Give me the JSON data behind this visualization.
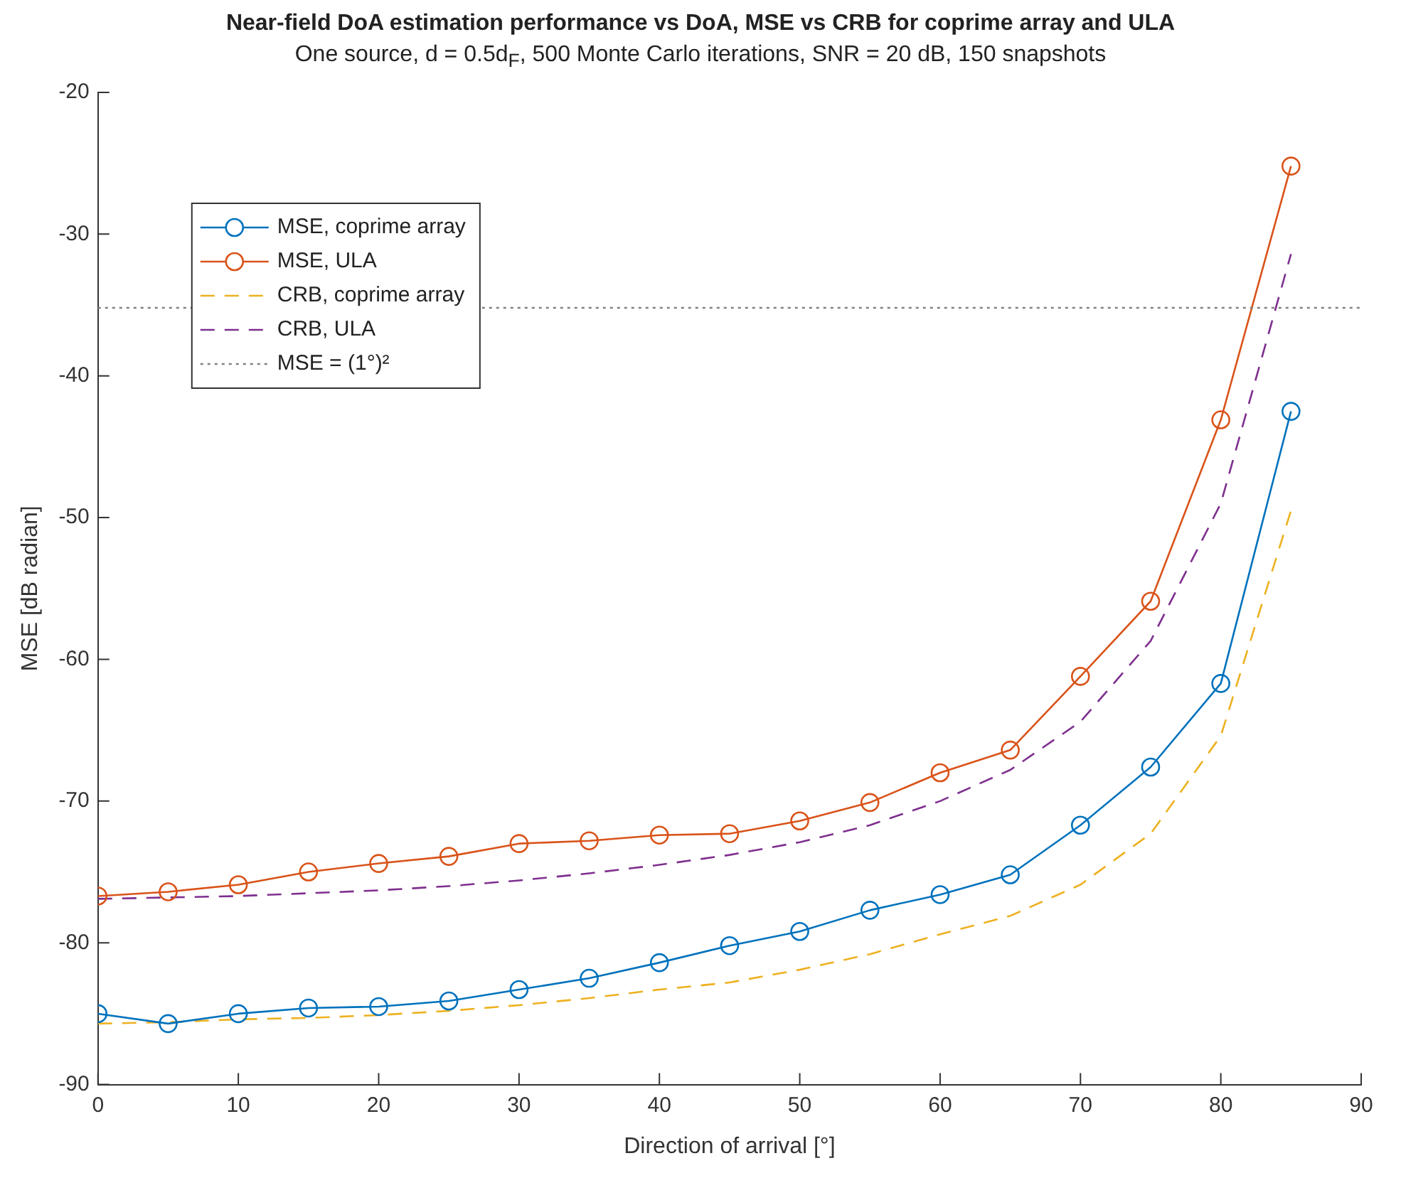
{
  "chart_data": {
    "type": "line",
    "title": "Near-field DoA estimation performance vs DoA, MSE vs CRB for coprime array and ULA",
    "subtitle": "One source, d = 0.5d$_{F}$, 500 Monte Carlo iterations, SNR = 20 dB, 150 snapshots",
    "xlabel": "Direction of arrival [°]",
    "ylabel": "MSE [dB radian]",
    "x": [
      0,
      5,
      10,
      15,
      20,
      25,
      30,
      35,
      40,
      45,
      50,
      55,
      60,
      65,
      70,
      75,
      80,
      85
    ],
    "series": [
      {
        "name": "MSE, coprime array",
        "color": "#0072bd",
        "marker": "circle",
        "line_style": "solid",
        "values": [
          -85.0,
          -85.7,
          -85.0,
          -84.6,
          -84.5,
          -84.1,
          -83.3,
          -82.5,
          -81.4,
          -80.2,
          -79.2,
          -77.7,
          -76.6,
          -75.2,
          -71.7,
          -67.6,
          -61.7,
          -42.5
        ]
      },
      {
        "name": "MSE, ULA",
        "color": "#d95319",
        "marker": "circle",
        "line_style": "solid",
        "values": [
          -76.7,
          -76.4,
          -75.9,
          -75.0,
          -74.4,
          -73.9,
          -73.0,
          -72.8,
          -72.4,
          -72.3,
          -71.4,
          -70.1,
          -68.0,
          -66.4,
          -61.2,
          -55.9,
          -43.1,
          -25.2
        ]
      },
      {
        "name": "CRB, coprime array",
        "color": "#edb120",
        "marker": "none",
        "line_style": "dashed",
        "values": [
          -85.7,
          -85.6,
          -85.4,
          -85.3,
          -85.1,
          -84.8,
          -84.4,
          -83.9,
          -83.3,
          -82.8,
          -81.9,
          -80.8,
          -79.4,
          -78.1,
          -75.9,
          -72.3,
          -65.4,
          -49.5
        ]
      },
      {
        "name": "CRB, ULA",
        "color": "#7e2f8e",
        "marker": "none",
        "line_style": "dashed",
        "values": [
          -76.9,
          -76.8,
          -76.7,
          -76.5,
          -76.3,
          -76.0,
          -75.6,
          -75.1,
          -74.5,
          -73.8,
          -72.9,
          -71.7,
          -70.0,
          -67.8,
          -64.4,
          -58.7,
          -49.0,
          -31.4
        ]
      }
    ],
    "ref_lines": [
      {
        "axis": "y",
        "value": -35.2,
        "label": "MSE = (1°)²",
        "color": "#808080",
        "line_style": "dotted"
      }
    ],
    "xlim": [
      0,
      90
    ],
    "xticks": [
      0,
      10,
      20,
      30,
      40,
      50,
      60,
      70,
      80,
      90
    ],
    "ylim": [
      -90,
      -20
    ],
    "yticks": [
      -90,
      -80,
      -70,
      -60,
      -50,
      -40,
      -30,
      -20
    ],
    "grid": false,
    "legend": "top left"
  }
}
